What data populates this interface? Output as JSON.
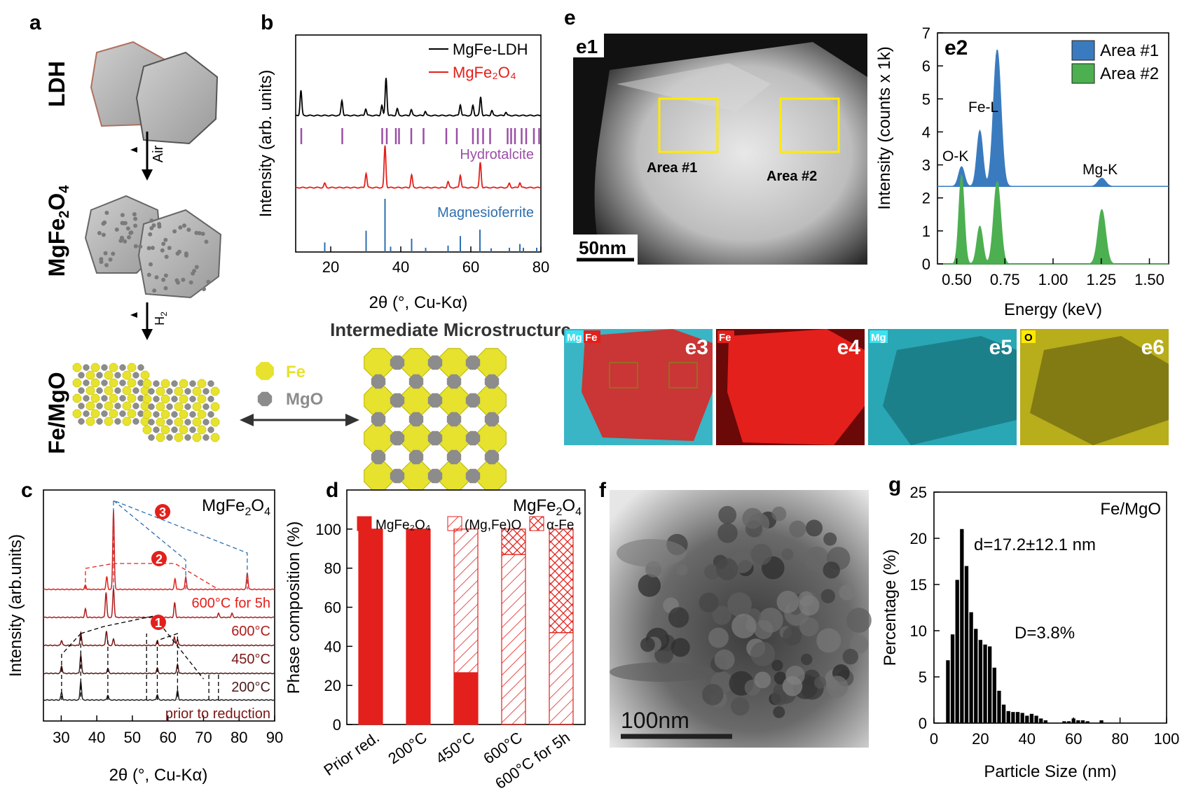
{
  "panels": {
    "a": {
      "label": "a",
      "stage_labels": [
        "LDH",
        "Fe/MgO"
      ],
      "spinel_label": {
        "base": "MgFe",
        "sub1": "2",
        "mid": "O",
        "sub2": "4"
      },
      "arrow1": "Air",
      "arrow2": {
        "base": "H",
        "sub": "2"
      },
      "legend": {
        "fe": "Fe",
        "mgo": "MgO"
      },
      "micro_title": "Intermediate Microstructure",
      "colors": {
        "fe": "#e6e22e",
        "mgo": "#8c8c8c"
      }
    },
    "b": {
      "label": "b"
    },
    "c": {
      "label": "c"
    },
    "d": {
      "label": "d"
    },
    "e": {
      "label": "e",
      "e1": {
        "label": "e1",
        "area1": "Area #1",
        "area2": "Area #2",
        "scale": "50nm"
      },
      "maps": [
        {
          "label": "e3",
          "tags": [
            "Mg",
            "Fe"
          ]
        },
        {
          "label": "e4",
          "tags": [
            "Fe"
          ]
        },
        {
          "label": "e5",
          "tags": [
            "Mg"
          ]
        },
        {
          "label": "e6",
          "tags": [
            "O"
          ]
        }
      ]
    },
    "f": {
      "label": "f",
      "scale": "100nm"
    },
    "g": {
      "label": "g"
    }
  },
  "chart_data": [
    {
      "id": "b",
      "type": "line",
      "xlabel": "2θ (°, Cu-Kα)",
      "ylabel": "Intensity (arb. units)",
      "xlim": [
        10,
        80
      ],
      "xticks": [
        20,
        40,
        60,
        80
      ],
      "series": [
        {
          "name": "MgFe-LDH",
          "color": "#000000",
          "baseline": 0.3,
          "peaks": [
            [
              11.5,
              0.3
            ],
            [
              23.2,
              0.18
            ],
            [
              30.0,
              0.08
            ],
            [
              34.6,
              0.12
            ],
            [
              35.8,
              0.45
            ],
            [
              39.0,
              0.08
            ],
            [
              43.0,
              0.07
            ],
            [
              47.0,
              0.05
            ],
            [
              57.0,
              0.13
            ],
            [
              60.6,
              0.12
            ],
            [
              62.8,
              0.22
            ],
            [
              66.0,
              0.06
            ],
            [
              70.0,
              0.04
            ]
          ]
        },
        {
          "name": "MgFe₂O₄",
          "color": "#e3201b",
          "baseline": 0.3,
          "peaks": [
            [
              18.3,
              0.05
            ],
            [
              30.1,
              0.17
            ],
            [
              35.5,
              0.5
            ],
            [
              43.1,
              0.15
            ],
            [
              53.5,
              0.07
            ],
            [
              57.0,
              0.15
            ],
            [
              62.7,
              0.3
            ],
            [
              71.0,
              0.05
            ],
            [
              74.0,
              0.06
            ]
          ]
        }
      ],
      "references": [
        {
          "name": "Hydrotalcite",
          "color": "#9b4fa6",
          "positions": [
            11.6,
            23.3,
            34.7,
            36.0,
            38.6,
            39.5,
            43.0,
            46.5,
            53.0,
            56.0,
            60.6,
            62.0,
            63.5,
            65.5,
            70.5,
            71.5,
            72.6,
            74.5,
            75.8,
            78.0,
            79.5
          ]
        },
        {
          "name": "Magnesioferrite",
          "color": "#2e6fae",
          "positions": [
            [
              18.3,
              0.18
            ],
            [
              30.1,
              0.4
            ],
            [
              35.5,
              1.0
            ],
            [
              37.1,
              0.1
            ],
            [
              43.1,
              0.25
            ],
            [
              47.1,
              0.08
            ],
            [
              53.5,
              0.12
            ],
            [
              57.0,
              0.3
            ],
            [
              62.6,
              0.42
            ],
            [
              65.8,
              0.07
            ],
            [
              71.0,
              0.08
            ],
            [
              74.0,
              0.15
            ],
            [
              75.0,
              0.08
            ],
            [
              78.8,
              0.08
            ]
          ]
        }
      ]
    },
    {
      "id": "c",
      "type": "line",
      "xlabel": "2θ (°, Cu-Kα)",
      "ylabel": "Intensity (arb.units)",
      "xlim": [
        25,
        90
      ],
      "xticks": [
        30,
        40,
        50,
        60,
        70,
        80,
        90
      ],
      "corner_label": {
        "base": "MgFe",
        "sub1": "2",
        "mid": "O",
        "sub2": "4"
      },
      "markers": [
        "1",
        "2",
        "3"
      ],
      "series": [
        {
          "name": "prior to reduction",
          "color": "#222222",
          "peaks": [
            [
              30.1,
              0.18
            ],
            [
              35.5,
              0.45
            ],
            [
              43.1,
              0.12
            ],
            [
              57.0,
              0.13
            ],
            [
              62.7,
              0.22
            ]
          ]
        },
        {
          "name": "200°C",
          "color": "#4a1a1a",
          "peaks": [
            [
              30.1,
              0.18
            ],
            [
              35.5,
              0.45
            ],
            [
              43.1,
              0.12
            ],
            [
              57.0,
              0.13
            ],
            [
              62.7,
              0.22
            ]
          ]
        },
        {
          "name": "450°C",
          "color": "#7a1616",
          "peaks": [
            [
              30.1,
              0.12
            ],
            [
              35.5,
              0.3
            ],
            [
              42.7,
              0.35
            ],
            [
              44.7,
              0.15
            ],
            [
              57.0,
              0.1
            ],
            [
              61.8,
              0.2
            ],
            [
              62.7,
              0.15
            ]
          ]
        },
        {
          "name": "600°C",
          "color": "#b01c1c",
          "peaks": [
            [
              36.8,
              0.2
            ],
            [
              42.6,
              0.6
            ],
            [
              44.7,
              0.7
            ],
            [
              61.9,
              0.35
            ],
            [
              74.2,
              0.1
            ],
            [
              78.0,
              0.1
            ]
          ]
        },
        {
          "name": "600°C for 5h",
          "color": "#e3201b",
          "peaks": [
            [
              36.8,
              0.1
            ],
            [
              42.8,
              0.3
            ],
            [
              44.7,
              1.9
            ],
            [
              62.0,
              0.25
            ],
            [
              65.0,
              0.3
            ],
            [
              82.3,
              0.4
            ]
          ]
        }
      ]
    },
    {
      "id": "d",
      "type": "bar",
      "ylabel": "Phase composition (%)",
      "ylim": [
        0,
        120
      ],
      "yticks": [
        0,
        20,
        40,
        60,
        80,
        100
      ],
      "corner_label": {
        "base": "MgFe",
        "sub1": "2",
        "mid": "O",
        "sub2": "4"
      },
      "categories": [
        "Prior red.",
        "200°C",
        "450°C",
        "600°C",
        "600°C for 5h"
      ],
      "series": [
        {
          "name": "MgFe₂O₄",
          "values": [
            100,
            100,
            26.5,
            0,
            0
          ],
          "color": "#e3201b"
        },
        {
          "name": "(Mg,Fe)O",
          "values": [
            0,
            0,
            73.5,
            87,
            47
          ],
          "color": "#e3201b"
        },
        {
          "name": "α-Fe",
          "values": [
            0,
            0,
            0,
            13,
            53
          ],
          "color": "#e3201b"
        }
      ]
    },
    {
      "id": "e2",
      "type": "area",
      "label": "e2",
      "xlabel": "Energy (keV)",
      "ylabel": "Intensity (counts x 1k)",
      "xlim": [
        0.4,
        1.6
      ],
      "ylim": [
        0,
        7
      ],
      "xticks": [
        0.5,
        0.75,
        1.0,
        1.25,
        1.5
      ],
      "xticklabels": [
        "0.50",
        "0.75",
        "1.00",
        "1.25",
        "1.50"
      ],
      "yticks": [
        0,
        1,
        2,
        3,
        4,
        5,
        6,
        7
      ],
      "annotations": [
        "O-K",
        "Fe-L",
        "Mg-K"
      ],
      "series": [
        {
          "name": "Area #1",
          "color": "#3a7bbf",
          "baseline": 2.35,
          "peaks": [
            [
              0.525,
              0.6,
              0.022
            ],
            [
              0.62,
              1.7,
              0.022
            ],
            [
              0.71,
              4.15,
              0.028
            ],
            [
              1.253,
              0.25,
              0.028
            ]
          ]
        },
        {
          "name": "Area #2",
          "color": "#4caf50",
          "baseline": 0,
          "peaks": [
            [
              0.525,
              2.7,
              0.02
            ],
            [
              0.62,
              1.15,
              0.022
            ],
            [
              0.71,
              2.5,
              0.026
            ],
            [
              1.253,
              1.65,
              0.028
            ]
          ]
        }
      ]
    },
    {
      "id": "g",
      "type": "bar",
      "xlabel": "Particle Size (nm)",
      "ylabel": "Percentage (%)",
      "xlim": [
        0,
        100
      ],
      "ylim": [
        0,
        25
      ],
      "xticks": [
        0,
        20,
        40,
        60,
        80,
        100
      ],
      "yticks": [
        0,
        5,
        10,
        15,
        20,
        25
      ],
      "corner_label": "Fe/MgO",
      "annotations": [
        "d=17.2±12.1 nm",
        "D=3.8%"
      ],
      "bin_width": 2,
      "bins_start": 6,
      "values": [
        6.8,
        9.6,
        15.5,
        21.0,
        17.0,
        12.0,
        10.2,
        9.0,
        8.5,
        8.3,
        6.0,
        3.5,
        2.0,
        1.3,
        1.2,
        1.2,
        1.1,
        0.8,
        1.0,
        0.8,
        0.5,
        0.3,
        0.0,
        0.0,
        0.0,
        0.2,
        0.2,
        0.5,
        0.3,
        0.3,
        0.2,
        0.0,
        0.0,
        0.3
      ]
    }
  ]
}
